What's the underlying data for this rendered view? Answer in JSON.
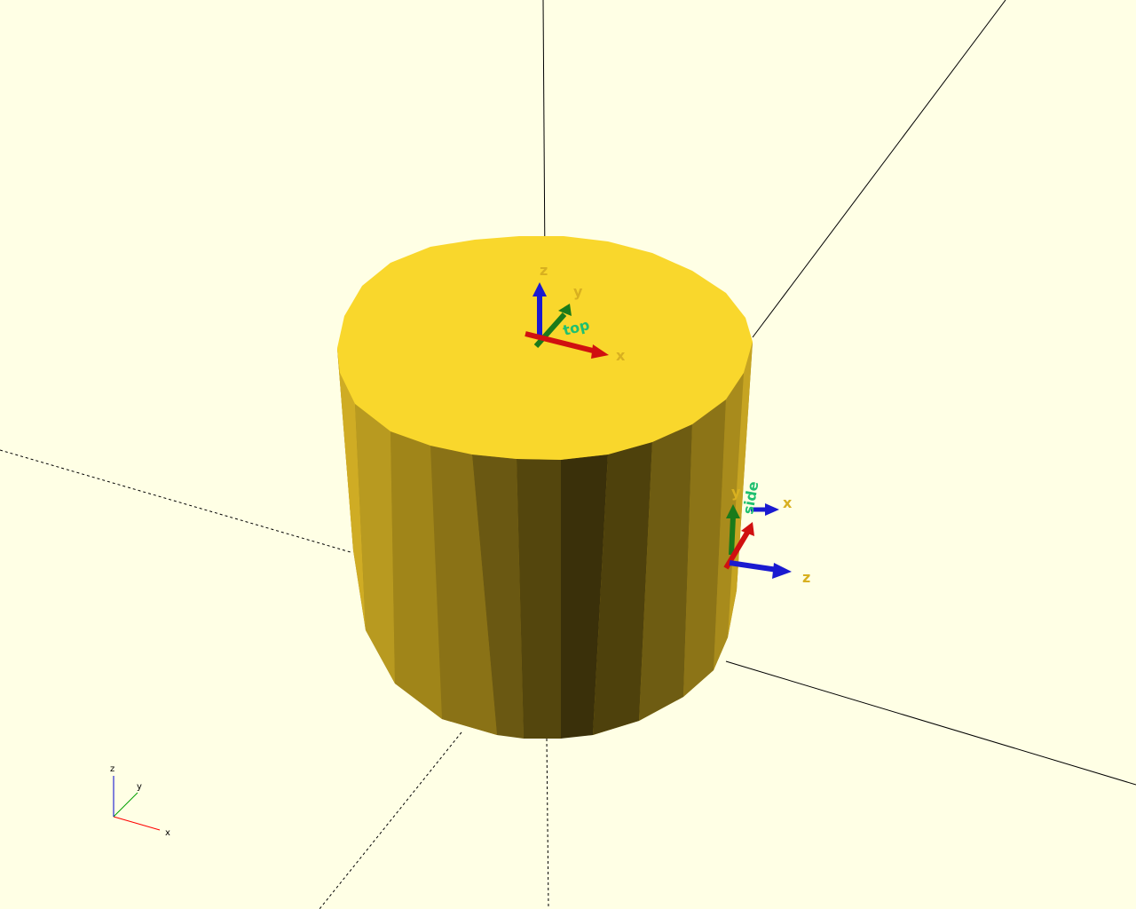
{
  "colors": {
    "background": "#ffffe5",
    "cylinder_top": "#f9d72c",
    "axis_line": "#000000",
    "axis_x": "#ff0000",
    "axis_y": "#00a000",
    "axis_z": "#0000d0",
    "arrow_x": "#d01010",
    "arrow_y": "#1a7a1a",
    "arrow_z": "#1a1ad0",
    "label_yellow": "#d8b020",
    "label_green": "#20c070"
  },
  "gizmo_top": {
    "x_label": "x",
    "y_label": "y",
    "z_label": "z",
    "name_label": "top"
  },
  "gizmo_side": {
    "x_label": "x",
    "y_label": "y",
    "z_label": "z",
    "name_label": "side"
  },
  "axis_indicator": {
    "x_label": "x",
    "y_label": "y",
    "z_label": "z"
  }
}
